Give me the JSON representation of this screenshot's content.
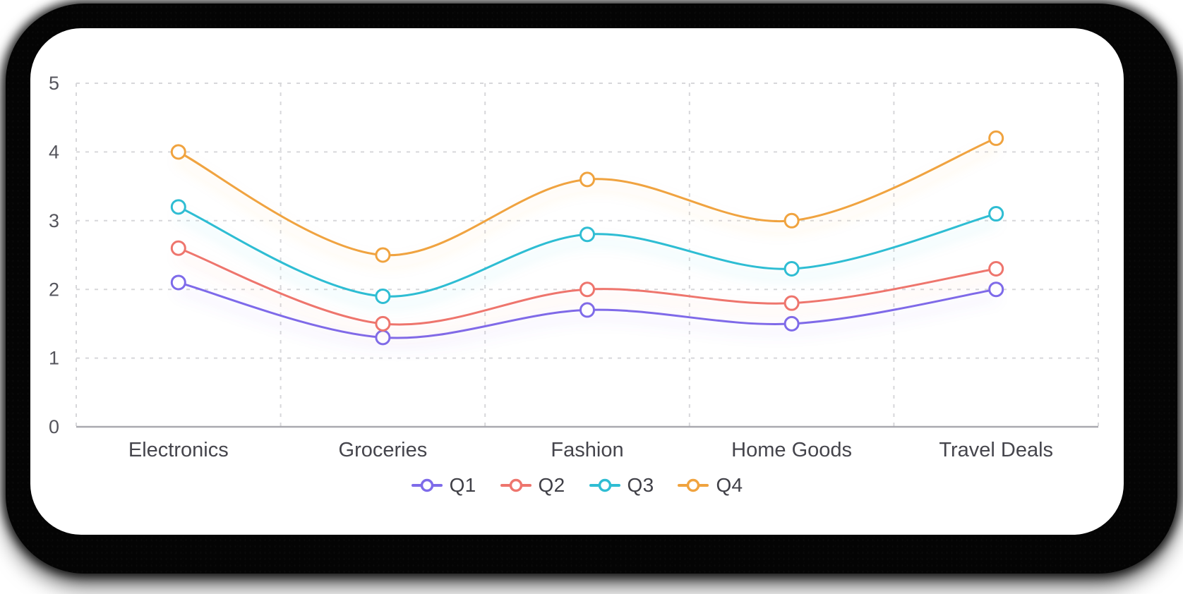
{
  "chart_data": {
    "type": "line",
    "curve": "smooth",
    "marker": "open-circle",
    "title": "",
    "xlabel": "",
    "ylabel": "",
    "categories": [
      "Electronics",
      "Groceries",
      "Fashion",
      "Home Goods",
      "Travel Deals"
    ],
    "series": [
      {
        "name": "Q1",
        "color": "#7e6bea",
        "values": [
          2.1,
          1.3,
          1.7,
          1.5,
          2.0
        ]
      },
      {
        "name": "Q2",
        "color": "#ee756d",
        "values": [
          2.6,
          1.5,
          2.0,
          1.8,
          2.3
        ]
      },
      {
        "name": "Q3",
        "color": "#2fbdd3",
        "values": [
          3.2,
          1.9,
          2.8,
          2.3,
          3.1
        ]
      },
      {
        "name": "Q4",
        "color": "#f0a33f",
        "values": [
          4.0,
          2.5,
          3.6,
          3.0,
          4.2
        ]
      }
    ],
    "ylim": [
      0,
      5
    ],
    "yticks": [
      "0",
      "1",
      "2",
      "3",
      "4",
      "5"
    ],
    "grid": true,
    "grid_style": "dashed",
    "legend_position": "bottom"
  },
  "style": {
    "grid_color": "#d7d7da",
    "axis_line_color": "#a9a9b0",
    "y_tick_color": "#55555c",
    "x_label_color": "#45454c",
    "card_bg": "#ffffff",
    "page_bg": "#040404"
  }
}
